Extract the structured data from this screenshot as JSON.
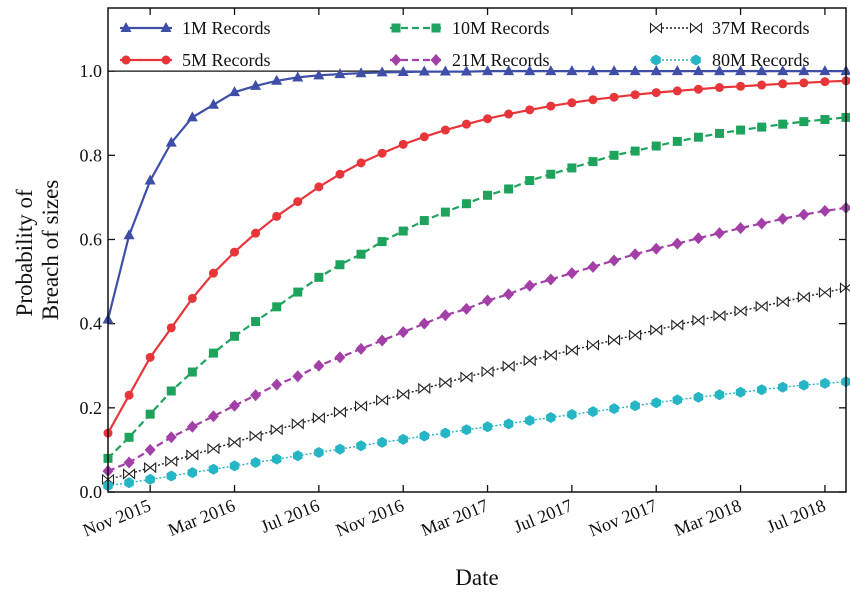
{
  "chart_data": {
    "type": "line",
    "xlabel": "Date",
    "ylabel_lines": [
      "Probability of",
      "Breach of sizes"
    ],
    "ylim": [
      0.0,
      1.15
    ],
    "x": [
      "2015-09",
      "2015-10",
      "2015-11",
      "2015-12",
      "2016-01",
      "2016-02",
      "2016-03",
      "2016-04",
      "2016-05",
      "2016-06",
      "2016-07",
      "2016-08",
      "2016-09",
      "2016-10",
      "2016-11",
      "2016-12",
      "2017-01",
      "2017-02",
      "2017-03",
      "2017-04",
      "2017-05",
      "2017-06",
      "2017-07",
      "2017-08",
      "2017-09",
      "2017-10",
      "2017-11",
      "2017-12",
      "2018-01",
      "2018-02",
      "2018-03",
      "2018-04",
      "2018-05",
      "2018-06",
      "2018-07",
      "2018-08"
    ],
    "x_ticks": [
      "Nov 2015",
      "Mar 2016",
      "Jul 2016",
      "Nov 2016",
      "Mar 2017",
      "Jul 2017",
      "Nov 2017",
      "Mar 2018",
      "Jul 2018"
    ],
    "y_ticks": [
      "0.0",
      "0.2",
      "0.4",
      "0.6",
      "0.8",
      "1.0"
    ],
    "reference_line": 1.0,
    "legend_position": "top",
    "series": [
      {
        "name": "1M Records",
        "color": "#3f4fa8",
        "marker": "triangle",
        "dash": "solid",
        "values": [
          0.41,
          0.61,
          0.74,
          0.83,
          0.89,
          0.92,
          0.95,
          0.965,
          0.977,
          0.985,
          0.99,
          0.993,
          0.995,
          0.997,
          0.998,
          0.999,
          0.999,
          0.999,
          1.0,
          1.0,
          1.0,
          1.0,
          1.0,
          1.0,
          1.0,
          1.0,
          1.0,
          1.0,
          1.0,
          1.0,
          1.0,
          1.0,
          1.0,
          1.0,
          1.0,
          1.0
        ]
      },
      {
        "name": "5M Records",
        "color": "#e8353a",
        "marker": "circle",
        "dash": "solid",
        "values": [
          0.14,
          0.23,
          0.32,
          0.39,
          0.46,
          0.52,
          0.57,
          0.615,
          0.655,
          0.69,
          0.725,
          0.755,
          0.782,
          0.805,
          0.826,
          0.844,
          0.86,
          0.874,
          0.887,
          0.898,
          0.908,
          0.917,
          0.925,
          0.932,
          0.938,
          0.944,
          0.949,
          0.953,
          0.957,
          0.961,
          0.964,
          0.967,
          0.97,
          0.972,
          0.975,
          0.977
        ]
      },
      {
        "name": "10M Records",
        "color": "#1ea35c",
        "marker": "square",
        "dash": "dashed",
        "values": [
          0.08,
          0.13,
          0.185,
          0.24,
          0.285,
          0.33,
          0.37,
          0.405,
          0.44,
          0.475,
          0.51,
          0.54,
          0.565,
          0.595,
          0.62,
          0.645,
          0.665,
          0.685,
          0.705,
          0.72,
          0.74,
          0.755,
          0.77,
          0.785,
          0.8,
          0.81,
          0.822,
          0.833,
          0.843,
          0.852,
          0.86,
          0.867,
          0.874,
          0.88,
          0.885,
          0.89
        ]
      },
      {
        "name": "21M Records",
        "color": "#a340a8",
        "marker": "diamond",
        "dash": "dashed",
        "values": [
          0.05,
          0.07,
          0.1,
          0.13,
          0.155,
          0.18,
          0.205,
          0.23,
          0.255,
          0.275,
          0.3,
          0.32,
          0.34,
          0.36,
          0.38,
          0.4,
          0.42,
          0.435,
          0.455,
          0.47,
          0.49,
          0.505,
          0.52,
          0.535,
          0.55,
          0.565,
          0.578,
          0.59,
          0.603,
          0.615,
          0.627,
          0.638,
          0.649,
          0.659,
          0.668,
          0.675
        ]
      },
      {
        "name": "37M Records",
        "color": "#222222",
        "marker": "bowtie",
        "dash": "dotted",
        "values": [
          0.03,
          0.043,
          0.058,
          0.073,
          0.088,
          0.103,
          0.118,
          0.133,
          0.148,
          0.162,
          0.176,
          0.19,
          0.204,
          0.218,
          0.232,
          0.246,
          0.26,
          0.273,
          0.286,
          0.299,
          0.312,
          0.325,
          0.337,
          0.349,
          0.361,
          0.373,
          0.385,
          0.397,
          0.408,
          0.419,
          0.43,
          0.441,
          0.452,
          0.463,
          0.474,
          0.485
        ]
      },
      {
        "name": "80M Records",
        "color": "#25b5c4",
        "marker": "hexagon",
        "dash": "dotted",
        "values": [
          0.015,
          0.022,
          0.03,
          0.038,
          0.046,
          0.054,
          0.062,
          0.07,
          0.078,
          0.086,
          0.094,
          0.102,
          0.11,
          0.118,
          0.125,
          0.133,
          0.14,
          0.148,
          0.155,
          0.162,
          0.17,
          0.177,
          0.184,
          0.191,
          0.198,
          0.205,
          0.212,
          0.219,
          0.225,
          0.231,
          0.237,
          0.243,
          0.249,
          0.254,
          0.258,
          0.262
        ]
      }
    ]
  }
}
